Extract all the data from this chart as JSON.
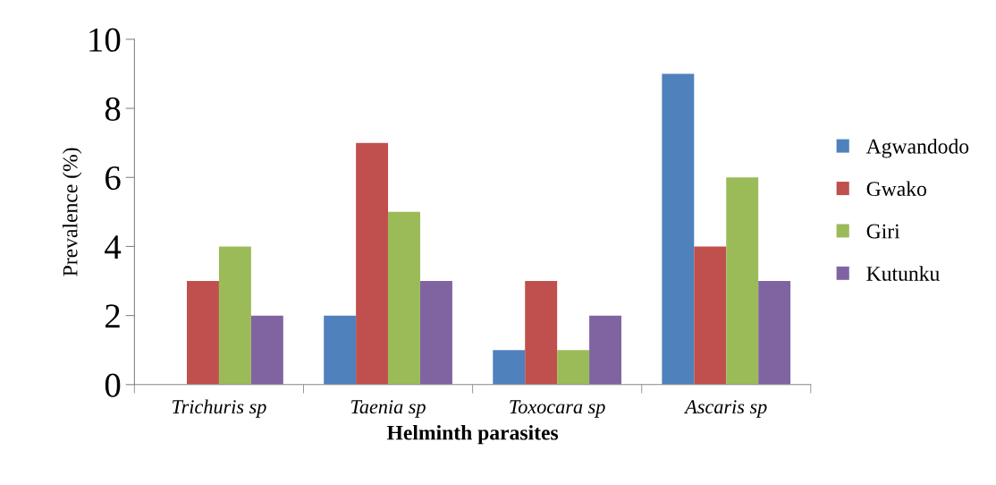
{
  "chart_data": {
    "type": "bar",
    "xlabel": "Helminth parasites",
    "ylabel": "Prevalence (%)",
    "categories": [
      "Trichuris sp",
      "Taenia sp",
      "Toxocara sp",
      "Ascaris sp"
    ],
    "series": [
      {
        "name": "Agwandodo",
        "color": "#4f81bd",
        "values": [
          0,
          2,
          1,
          9
        ]
      },
      {
        "name": "Gwako",
        "color": "#c0504d",
        "values": [
          3,
          7,
          3,
          4
        ]
      },
      {
        "name": "Giri",
        "color": "#9bbb59",
        "values": [
          4,
          5,
          1,
          6
        ]
      },
      {
        "name": "Kutunku",
        "color": "#8064a2",
        "values": [
          2,
          3,
          2,
          3
        ]
      }
    ],
    "ylim": [
      0,
      10
    ],
    "yticks": [
      0,
      2,
      4,
      6,
      8,
      10
    ],
    "grid": false,
    "legend": "right"
  }
}
